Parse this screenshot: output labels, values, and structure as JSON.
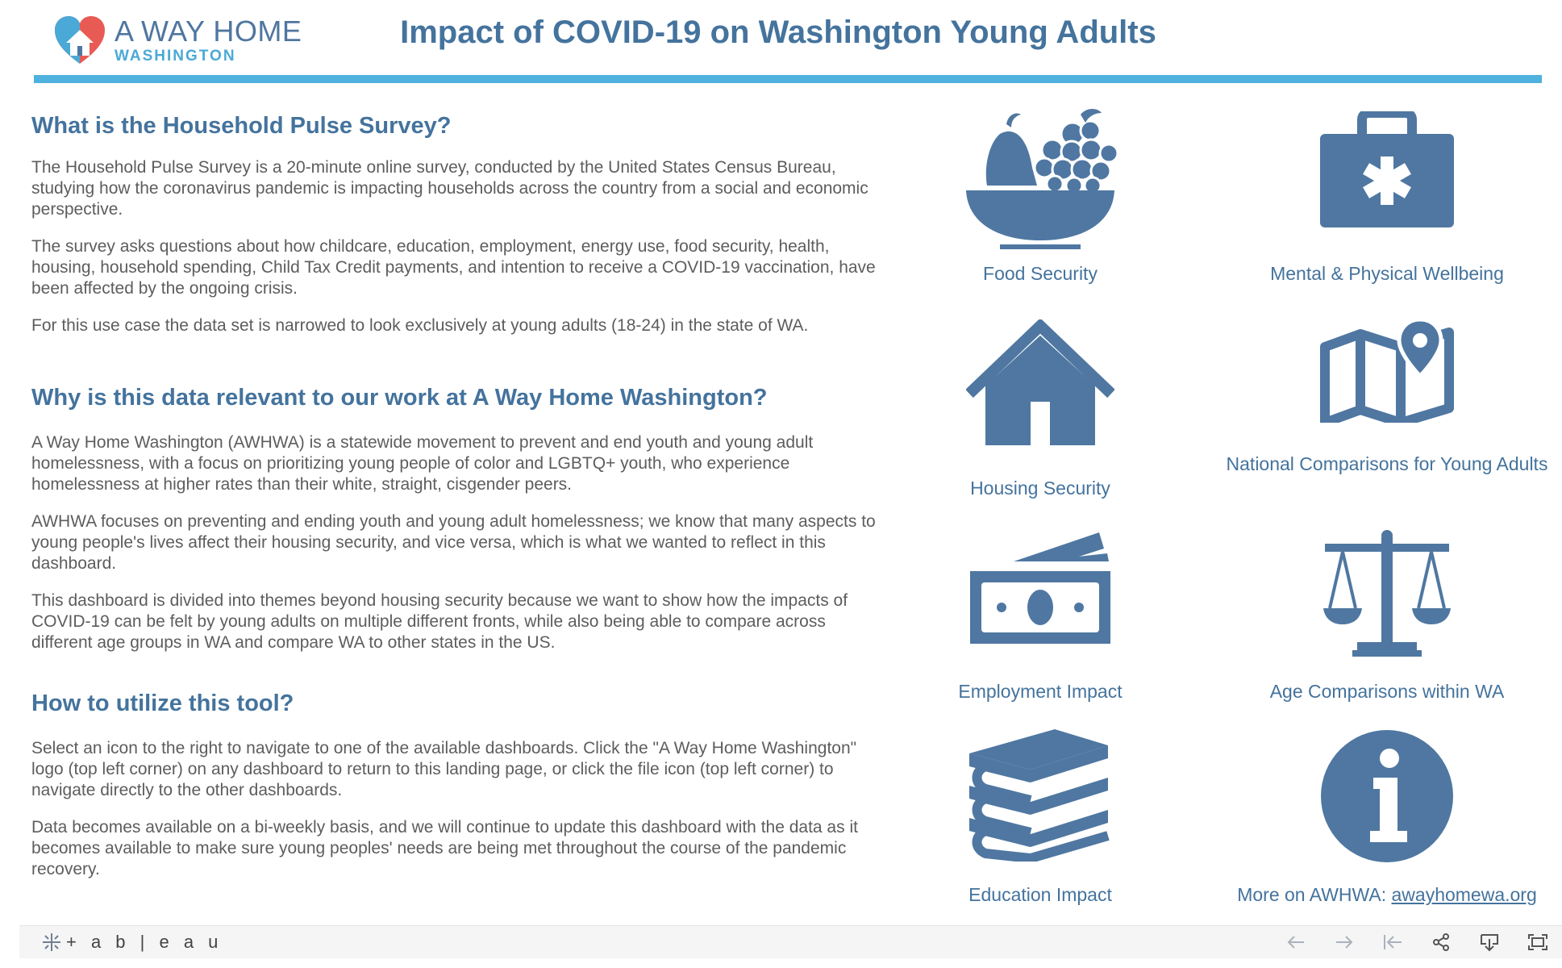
{
  "header": {
    "logo_main": "A WAY HOME",
    "logo_sub": "WASHINGTON",
    "title": "Impact of COVID-19 on Washington Young Adults"
  },
  "sections": [
    {
      "heading": "What is the Household Pulse Survey?",
      "paragraphs": [
        "The Household Pulse Survey is a 20-minute online survey, conducted by the United States Census Bureau, studying how the coronavirus pandemic is impacting households across the country from a social and economic perspective.",
        "The survey asks questions about how childcare, education, employment, energy use, food security, health, housing, household spending, Child Tax Credit payments, and intention to receive a COVID-19 vaccination, have been affected by the ongoing crisis.",
        "For this use case the data set is narrowed to look exclusively at young adults (18-24) in the state of WA."
      ]
    },
    {
      "heading": "Why is this data relevant to our work at A Way Home Washington?",
      "paragraphs": [
        "A Way Home Washington (AWHWA) is a statewide movement to prevent and end youth and young adult homelessness, with a focus on prioritizing young people of color and LGBTQ+ youth, who experience homelessness at higher rates than their white, straight, cisgender peers.",
        "AWHWA focuses on preventing and ending youth and young adult homelessness; we know that many aspects to young people's lives affect their housing security, and vice versa, which is what we wanted to reflect in this dashboard.",
        "This dashboard is divided into themes beyond housing security because we want to show how the impacts of COVID-19 can be felt by young adults on multiple different fronts, while also being able to compare across different age groups in WA and compare WA to other states in the US."
      ]
    },
    {
      "heading": "How to utilize this tool?",
      "paragraphs": [
        "Select an icon to the right to navigate to one of the available dashboards. Click the \"A Way Home Washington\" logo (top left corner) on any dashboard to return to this landing page, or click the file icon (top left corner) to navigate directly to the other dashboards.",
        "Data becomes available on a bi-weekly basis, and we will continue to update this dashboard with the data as it becomes available to make sure young peoples' needs are being met throughout the course of the pandemic recovery."
      ]
    }
  ],
  "tiles": {
    "food": {
      "label": "Food Security",
      "icon": "food-bowl-icon"
    },
    "mental": {
      "label": "Mental & Physical Wellbeing",
      "icon": "first-aid-kit-icon"
    },
    "housing": {
      "label": "Housing Security",
      "icon": "house-icon"
    },
    "national": {
      "label": "National Comparisons for Young Adults",
      "icon": "map-pin-icon"
    },
    "employment": {
      "label": "Employment Impact",
      "icon": "money-icon"
    },
    "age": {
      "label": "Age Comparisons within WA",
      "icon": "scales-icon"
    },
    "education": {
      "label": "Education Impact",
      "icon": "books-icon"
    },
    "more": {
      "label": "More on AWHWA: ",
      "link": "awayhomewa.org",
      "icon": "info-icon"
    }
  },
  "toolbar": {
    "brand": "+ a b | e a u",
    "buttons": [
      "undo-icon",
      "redo-icon",
      "revert-icon",
      "share-icon",
      "download-icon",
      "fullscreen-icon"
    ]
  },
  "colors": {
    "accent": "#44739d",
    "icon": "#4f77a1",
    "rule": "#4fb1de",
    "logo_red": "#e85b54",
    "logo_blue": "#4aa9d6"
  }
}
